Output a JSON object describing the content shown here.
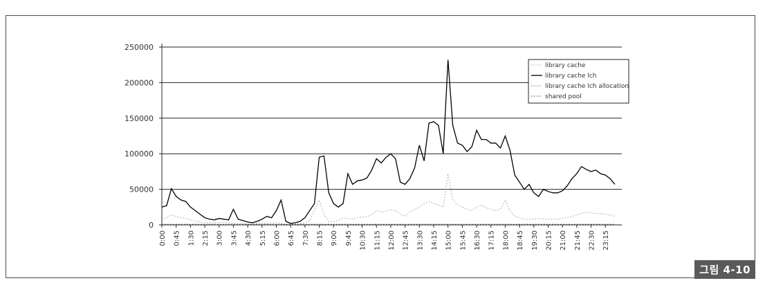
{
  "figure_label": "그림 4-10",
  "chart_data": {
    "type": "line",
    "title": "",
    "xlabel": "",
    "ylabel": "",
    "ylim": [
      0,
      250000
    ],
    "yticks": [
      0,
      50000,
      100000,
      150000,
      200000,
      250000
    ],
    "ytick_labels": [
      "0",
      "50000",
      "100000",
      "150000",
      "200000",
      "250000"
    ],
    "grid": "horizontal",
    "legend_position": "top-right",
    "categories": [
      "0:00",
      "0:15",
      "0:30",
      "0:45",
      "1:00",
      "1:15",
      "1:30",
      "1:45",
      "2:00",
      "2:15",
      "2:30",
      "2:45",
      "3:00",
      "3:15",
      "3:30",
      "3:45",
      "4:00",
      "4:15",
      "4:30",
      "4:45",
      "5:00",
      "5:15",
      "5:30",
      "5:45",
      "6:00",
      "6:15",
      "6:30",
      "6:45",
      "7:00",
      "7:15",
      "7:30",
      "7:45",
      "8:00",
      "8:15",
      "8:30",
      "8:45",
      "9:00",
      "9:15",
      "9:30",
      "9:45",
      "10:00",
      "10:15",
      "10:30",
      "10:45",
      "11:00",
      "11:15",
      "11:30",
      "11:45",
      "12:00",
      "12:15",
      "12:30",
      "12:45",
      "13:00",
      "13:15",
      "13:30",
      "13:45",
      "14:00",
      "14:15",
      "14:30",
      "14:45",
      "15:00",
      "15:15",
      "15:30",
      "15:45",
      "16:00",
      "16:15",
      "16:30",
      "16:45",
      "17:00",
      "17:15",
      "17:30",
      "17:45",
      "18:00",
      "18:15",
      "18:30",
      "18:45",
      "19:00",
      "19:15",
      "19:30",
      "19:45",
      "20:00",
      "20:15",
      "20:30",
      "20:45",
      "21:00",
      "21:15",
      "21:30",
      "21:45",
      "22:00",
      "22:15",
      "22:30",
      "22:45",
      "23:00",
      "23:15",
      "23:30",
      "23:45"
    ],
    "tick_labels": [
      "0:00",
      "0:45",
      "1:30",
      "2:15",
      "3:00",
      "3:45",
      "4:30",
      "5:15",
      "6:00",
      "6:45",
      "7:30",
      "8:15",
      "9:00",
      "9:45",
      "10:30",
      "11:15",
      "12:00",
      "12:45",
      "13:30",
      "14:15",
      "15:00",
      "15:45",
      "16:30",
      "17:15",
      "18:00",
      "18:45",
      "19:30",
      "20:15",
      "21:00",
      "21:45",
      "22:30",
      "23:15"
    ],
    "series": [
      {
        "name": "library cache",
        "color": "#9a9a9a",
        "style": "dotted",
        "values": [
          8000,
          10000,
          14000,
          12000,
          10000,
          9000,
          7000,
          5000,
          4000,
          3000,
          3000,
          3000,
          3000,
          4000,
          3000,
          2000,
          2000,
          2000,
          1000,
          1000,
          2000,
          2000,
          2000,
          2000,
          3000,
          2000,
          1000,
          1000,
          1000,
          2000,
          3000,
          6000,
          20000,
          35000,
          15000,
          5000,
          4000,
          6000,
          10000,
          9000,
          8000,
          10000,
          11000,
          12000,
          14000,
          20000,
          18000,
          19000,
          21000,
          20000,
          15000,
          12000,
          18000,
          22000,
          25000,
          30000,
          33000,
          30000,
          28000,
          25000,
          72000,
          35000,
          28000,
          25000,
          22000,
          20000,
          25000,
          28000,
          24000,
          22000,
          20000,
          22000,
          35000,
          20000,
          12000,
          10000,
          8000,
          8000,
          8000,
          9000,
          8000,
          8000,
          8000,
          8000,
          9000,
          10000,
          12000,
          14000,
          16000,
          18000,
          17000,
          16000,
          16000,
          15000,
          14000,
          12000
        ]
      },
      {
        "name": "library cache lch",
        "color": "#000000",
        "style": "solid",
        "values": [
          25000,
          27000,
          51000,
          40000,
          35000,
          33000,
          25000,
          20000,
          15000,
          10000,
          8000,
          7000,
          9000,
          8000,
          7000,
          22000,
          8000,
          6000,
          4000,
          3000,
          5000,
          8000,
          12000,
          10000,
          20000,
          35000,
          5000,
          2000,
          3000,
          5000,
          10000,
          20000,
          30000,
          95000,
          97000,
          45000,
          30000,
          25000,
          30000,
          72000,
          57000,
          62000,
          63000,
          66000,
          77000,
          93000,
          87000,
          95000,
          100000,
          93000,
          60000,
          57000,
          65000,
          80000,
          112000,
          90000,
          143000,
          145000,
          140000,
          100000,
          232000,
          140000,
          115000,
          112000,
          103000,
          110000,
          133000,
          120000,
          120000,
          115000,
          115000,
          108000,
          125000,
          105000,
          70000,
          60000,
          50000,
          57000,
          45000,
          40000,
          50000,
          47000,
          45000,
          45000,
          48000,
          55000,
          65000,
          72000,
          82000,
          78000,
          75000,
          77000,
          72000,
          70000,
          65000,
          57000
        ]
      },
      {
        "name": "library cache lch allocation",
        "color": "#666666",
        "style": "dotted",
        "values": [
          1000,
          1000,
          1000,
          1000,
          1000,
          1000,
          1000,
          1000,
          1000,
          1000,
          1000,
          1000,
          1000,
          1000,
          1000,
          1000,
          1000,
          1000,
          1000,
          1000,
          1000,
          1000,
          1000,
          1000,
          1000,
          1000,
          1000,
          1000,
          1000,
          1000,
          1000,
          1000,
          1000,
          1000,
          1000,
          1000,
          1000,
          1000,
          1000,
          1000,
          1000,
          1000,
          1000,
          1000,
          1000,
          1000,
          1000,
          1000,
          1000,
          1000,
          1000,
          1000,
          1000,
          1000,
          1000,
          1000,
          1000,
          1000,
          1000,
          1000,
          1000,
          1000,
          1000,
          1000,
          1000,
          1000,
          1000,
          1000,
          1000,
          1000,
          1000,
          1000,
          1000,
          1000,
          1000,
          1000,
          1000,
          1000,
          1000,
          1000,
          1000,
          1000,
          1000,
          1000,
          1000,
          1000,
          1000,
          1000,
          1000,
          1000,
          1000,
          1000,
          1000,
          1000,
          1000,
          1000
        ]
      },
      {
        "name": "shared pool",
        "color": "#333333",
        "style": "dotted",
        "values": [
          500,
          500,
          500,
          500,
          500,
          500,
          500,
          500,
          500,
          500,
          500,
          500,
          500,
          500,
          500,
          500,
          500,
          500,
          500,
          500,
          500,
          500,
          500,
          500,
          500,
          500,
          500,
          500,
          500,
          500,
          500,
          500,
          500,
          500,
          500,
          500,
          500,
          500,
          500,
          500,
          500,
          500,
          500,
          500,
          500,
          500,
          500,
          500,
          500,
          500,
          500,
          500,
          500,
          500,
          500,
          500,
          500,
          500,
          500,
          500,
          500,
          500,
          500,
          500,
          500,
          500,
          500,
          500,
          500,
          500,
          500,
          500,
          500,
          500,
          500,
          500,
          500,
          500,
          500,
          500,
          500,
          500,
          500,
          500,
          500,
          500,
          500,
          500,
          500,
          500,
          500,
          500,
          500,
          500,
          500,
          500
        ]
      }
    ]
  }
}
